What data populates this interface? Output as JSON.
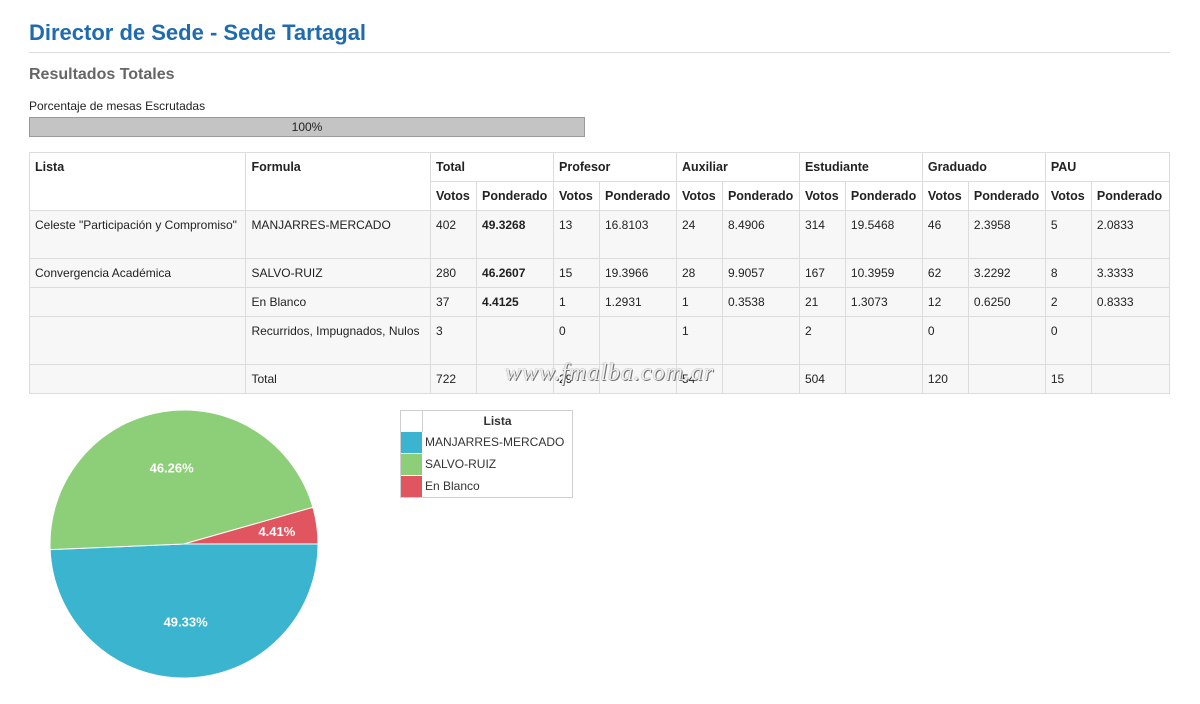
{
  "header": {
    "title": "Director de Sede - Sede Tartagal",
    "section": "Resultados Totales"
  },
  "progress": {
    "label": "Porcentaje de mesas Escrutadas",
    "text": "100%",
    "value": 1.0
  },
  "table": {
    "col_lista": "Lista",
    "col_formula": "Formula",
    "groups": [
      "Total",
      "Profesor",
      "Auxiliar",
      "Estudiante",
      "Graduado",
      "PAU"
    ],
    "sub_votos": "Votos",
    "sub_ponderado": "Ponderado",
    "rows": [
      {
        "lista": "Celeste \"Participación y Compromiso\"",
        "formula": "MANJARRES-MERCADO",
        "cells": [
          "402",
          "49.3268",
          "13",
          "16.8103",
          "24",
          "8.4906",
          "314",
          "19.5468",
          "46",
          "2.3958",
          "5",
          "2.0833"
        ]
      },
      {
        "lista": "Convergencia Académica",
        "formula": "SALVO-RUIZ",
        "cells": [
          "280",
          "46.2607",
          "15",
          "19.3966",
          "28",
          "9.9057",
          "167",
          "10.3959",
          "62",
          "3.2292",
          "8",
          "3.3333"
        ]
      },
      {
        "lista": "",
        "formula": "En Blanco",
        "cells": [
          "37",
          "4.4125",
          "1",
          "1.2931",
          "1",
          "0.3538",
          "21",
          "1.3073",
          "12",
          "0.6250",
          "2",
          "0.8333"
        ]
      },
      {
        "lista": "",
        "formula": "Recurridos, Impugnados, Nulos",
        "cells": [
          "3",
          "",
          "0",
          "",
          "1",
          "",
          "2",
          "",
          "0",
          "",
          "0",
          ""
        ]
      },
      {
        "lista": "",
        "formula": "Total",
        "cells": [
          "722",
          "",
          "29",
          "",
          "54",
          "",
          "504",
          "",
          "120",
          "",
          "15",
          ""
        ]
      }
    ]
  },
  "watermark": "www.fmalba.com.ar",
  "chart_data": {
    "type": "pie",
    "legend_title": "Lista",
    "legend_position": "right",
    "slices": [
      {
        "label": "MANJARRES-MERCADO",
        "value": 49.33,
        "display": "49.33%",
        "color": "#3ab4cf"
      },
      {
        "label": "SALVO-RUIZ",
        "value": 46.26,
        "display": "46.26%",
        "color": "#8ccf78"
      },
      {
        "label": "En Blanco",
        "value": 4.41,
        "display": "4.41%",
        "color": "#e05560"
      }
    ]
  }
}
